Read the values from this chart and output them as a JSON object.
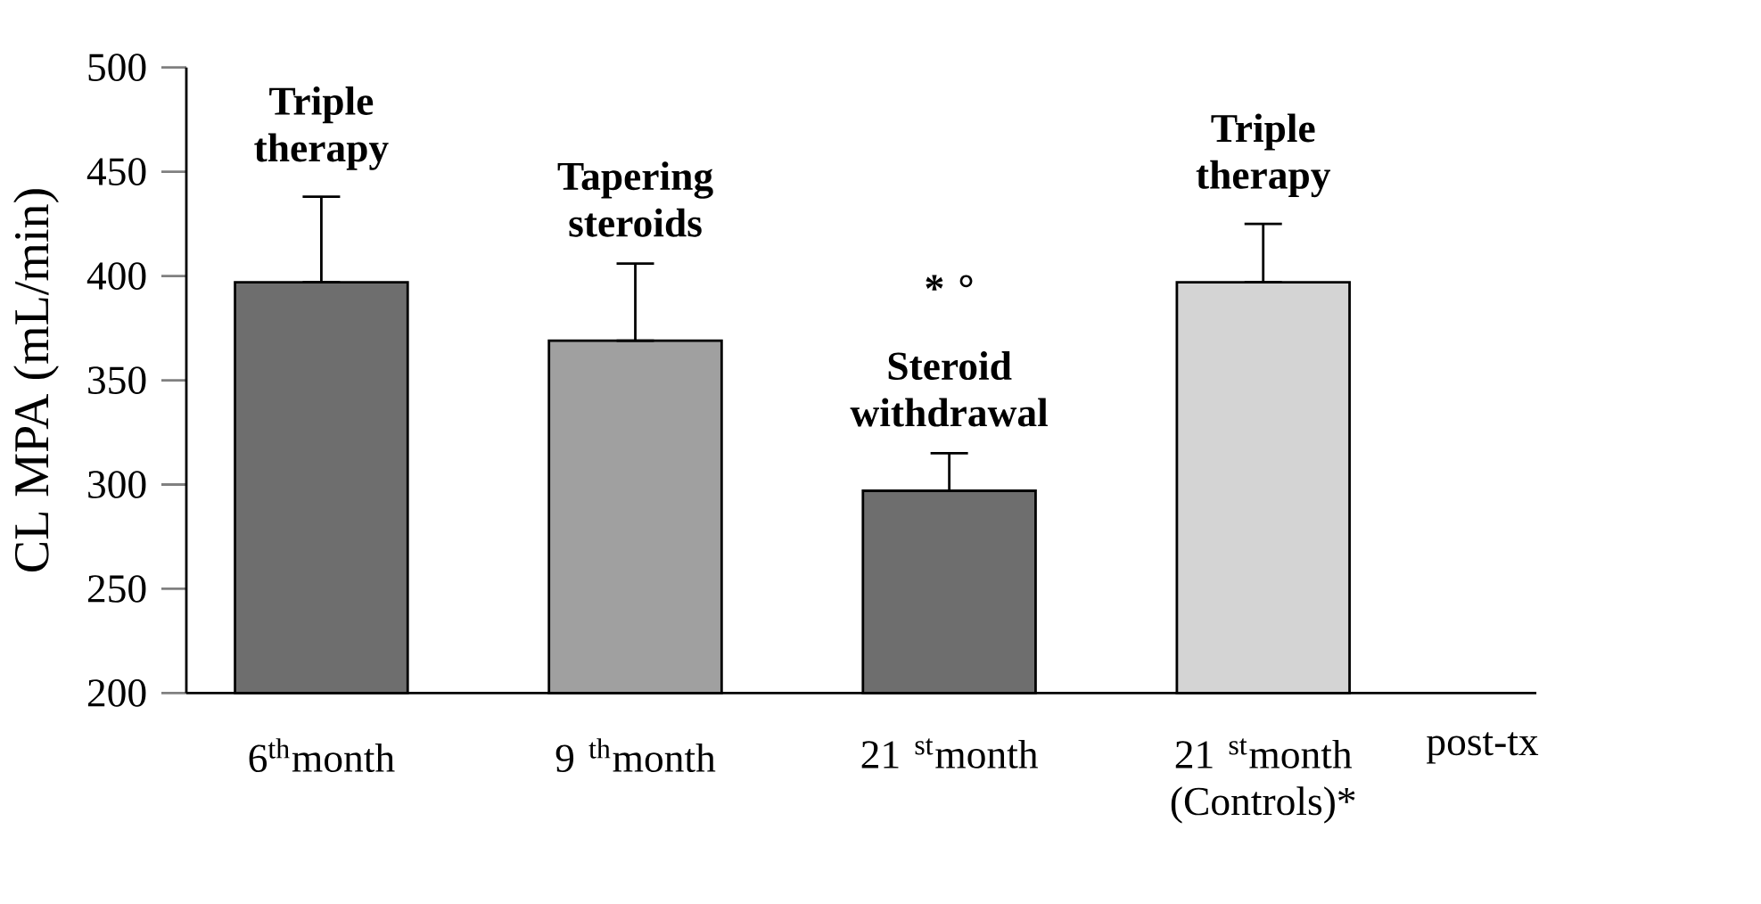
{
  "chart_data": {
    "type": "bar",
    "ylabel": "CL MPA (mL/min)",
    "xlabel": "post-tx",
    "categories": [
      "6$^{th}$month",
      "9 $^{th}$month",
      "21 $^{st}$month",
      "21 $^{st}$month (Controls)*"
    ],
    "values": [
      397,
      369,
      297,
      397
    ],
    "errors": [
      [
        397,
        438
      ],
      [
        369,
        406
      ],
      [
        297,
        315
      ],
      [
        397,
        425
      ]
    ],
    "colors": [
      "#6e6e6e",
      "#a0a0a0",
      "#6e6e6e",
      "#d4d4d4"
    ],
    "ylim": [
      200,
      500
    ],
    "yticks": [
      200,
      250,
      300,
      350,
      400,
      450,
      500
    ],
    "annotations": [
      "Triple therapy",
      "Tapering steroids",
      "* °",
      "Steroid withdrawal",
      "Triple therapy"
    ]
  }
}
